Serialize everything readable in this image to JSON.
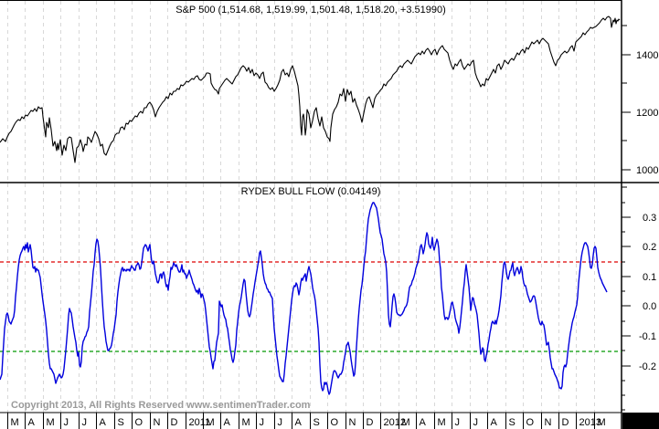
{
  "chart_data": [
    {
      "type": "line",
      "title": "S&P 500 (1,514.68, 1,519.99, 1,501.48, 1,518.20, +3.51990)",
      "series": [
        {
          "name": "S&P 500",
          "color": "#000000"
        }
      ],
      "yticks": [
        1000,
        1200,
        1400
      ],
      "ylim": [
        960,
        1560
      ],
      "grid": true,
      "approx_points": [
        [
          "2010-03",
          1110
        ],
        [
          "2010-04",
          1190
        ],
        [
          "2010-04-end",
          1215
        ],
        [
          "2010-05",
          1120
        ],
        [
          "2010-06",
          1080
        ],
        [
          "2010-07",
          1030
        ],
        [
          "2010-08",
          1100
        ],
        [
          "2010-08-end",
          1050
        ],
        [
          "2010-09",
          1110
        ],
        [
          "2010-10",
          1170
        ],
        [
          "2010-11",
          1190
        ],
        [
          "2010-12",
          1250
        ],
        [
          "2011-01",
          1290
        ],
        [
          "2011-02",
          1330
        ],
        [
          "2011-03",
          1300
        ],
        [
          "2011-04",
          1350
        ],
        [
          "2011-05",
          1340
        ],
        [
          "2011-06",
          1280
        ],
        [
          "2011-07",
          1340
        ],
        [
          "2011-08",
          1140
        ],
        [
          "2011-09",
          1160
        ],
        [
          "2011-10",
          1110
        ],
        [
          "2011-11",
          1240
        ],
        [
          "2011-12",
          1250
        ],
        [
          "2012-01",
          1310
        ],
        [
          "2012-02",
          1360
        ],
        [
          "2012-03",
          1400
        ],
        [
          "2012-04",
          1390
        ],
        [
          "2012-05",
          1300
        ],
        [
          "2012-06",
          1360
        ],
        [
          "2012-07",
          1380
        ],
        [
          "2012-08",
          1410
        ],
        [
          "2012-09",
          1450
        ],
        [
          "2012-10",
          1430
        ],
        [
          "2012-11",
          1360
        ],
        [
          "2012-12",
          1420
        ],
        [
          "2013-01",
          1480
        ],
        [
          "2013-02",
          1518
        ]
      ]
    },
    {
      "type": "line",
      "title": "RYDEX BULL FLOW (0.04149)",
      "series": [
        {
          "name": "Rydex Bull Flow",
          "color": "#0000dd"
        }
      ],
      "yticks": [
        -0.2,
        -0.1,
        0.0,
        0.1,
        0.2,
        0.3
      ],
      "ylim": [
        -0.35,
        0.36
      ],
      "reference_lines": [
        {
          "value": 0.15,
          "color": "#dd0000",
          "style": "dashed"
        },
        {
          "value": -0.15,
          "color": "#009900",
          "style": "dashed"
        }
      ],
      "grid": true,
      "approx_points": [
        [
          "2010-03",
          -0.22
        ],
        [
          "2010-03-mid",
          0.0
        ],
        [
          "2010-04",
          0.18
        ],
        [
          "2010-04-mid",
          0.21
        ],
        [
          "2010-05",
          0.08
        ],
        [
          "2010-06",
          -0.17
        ],
        [
          "2010-06-end",
          -0.25
        ],
        [
          "2010-07",
          -0.22
        ],
        [
          "2010-07-mid",
          -0.03
        ],
        [
          "2010-08",
          -0.2
        ],
        [
          "2010-08-end",
          -0.05
        ],
        [
          "2010-09",
          0.22
        ],
        [
          "2010-09-end",
          -0.08
        ],
        [
          "2010-10",
          -0.14
        ],
        [
          "2010-10-end",
          0.1
        ],
        [
          "2010-11",
          0.14
        ],
        [
          "2010-12",
          0.2
        ],
        [
          "2011-01",
          -0.0
        ],
        [
          "2011-02",
          0.14
        ],
        [
          "2011-03",
          0.12
        ],
        [
          "2011-04",
          0.05
        ],
        [
          "2011-05",
          0.0
        ],
        [
          "2011-05-end",
          -0.1
        ],
        [
          "2011-06",
          0.18
        ],
        [
          "2011-07",
          0.08
        ],
        [
          "2011-08",
          -0.24
        ],
        [
          "2011-09",
          -0.28
        ],
        [
          "2011-10",
          -0.1
        ],
        [
          "2011-10-end",
          0.2
        ],
        [
          "2011-11",
          0.36
        ],
        [
          "2011-12",
          0.0
        ],
        [
          "2011-12-end",
          -0.08
        ],
        [
          "2012-01",
          0.1
        ],
        [
          "2012-02",
          0.24
        ],
        [
          "2012-03",
          0.2
        ],
        [
          "2012-03-end",
          0.0
        ],
        [
          "2012-04",
          0.03
        ],
        [
          "2012-05",
          -0.05
        ],
        [
          "2012-05-end",
          0.12
        ],
        [
          "2012-06",
          -0.08
        ],
        [
          "2012-07",
          -0.17
        ],
        [
          "2012-07-end",
          0.0
        ],
        [
          "2012-08",
          0.15
        ],
        [
          "2012-09",
          0.12
        ],
        [
          "2012-10",
          0.0
        ],
        [
          "2012-11",
          -0.12
        ],
        [
          "2012-12",
          -0.27
        ],
        [
          "2012-12-end",
          -0.2
        ],
        [
          "2013-01",
          0.05
        ],
        [
          "2013-01-end",
          0.22
        ],
        [
          "2013-02",
          0.19
        ],
        [
          "2013-02-end",
          0.04
        ]
      ]
    }
  ],
  "top_panel": {
    "title": "S&P 500 (1,514.68, 1,519.99, 1,501.48, 1,518.20, +3.51990)",
    "yticks": [
      "1400",
      "1200",
      "1000"
    ]
  },
  "bottom_panel": {
    "title": "RYDEX BULL FLOW (0.04149)",
    "yticks": [
      "0.3",
      "0.2",
      "0.1",
      "0.0",
      "-0.1",
      "-0.2"
    ]
  },
  "x_axis": {
    "labels": [
      "M",
      "A",
      "M",
      "J",
      "J",
      "A",
      "S",
      "O",
      "N",
      "D",
      "2011",
      "M",
      "A",
      "M",
      "J",
      "J",
      "A",
      "S",
      "O",
      "N",
      "D",
      "2012",
      "M",
      "A",
      "M",
      "J",
      "J",
      "A",
      "S",
      "O",
      "N",
      "D",
      "2013",
      "M"
    ]
  },
  "copyright": "Copyright 2013, All Rights Reserved  www.sentimenTrader.com",
  "colors": {
    "price_line": "#000000",
    "flow_line": "#0000dd",
    "upper_threshold": "#dd0000",
    "lower_threshold": "#009900",
    "grid": "#d8d8d8"
  }
}
